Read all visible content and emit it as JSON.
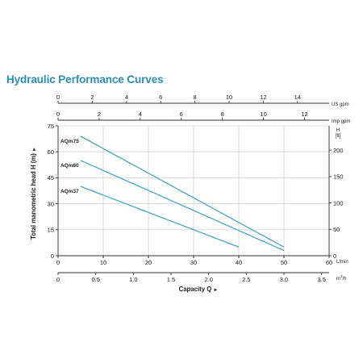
{
  "page": {
    "title": "Hydraulic Performance Curves"
  },
  "chart_data": {
    "type": "line",
    "title": "Hydraulic Performance Curves",
    "ylabel": "Total manometric head H (m)",
    "ylabel_arrow": "►",
    "xlabel": "Capacity Q",
    "xlabel_arrow": "►",
    "ylim": [
      0,
      75
    ],
    "xlim_lmin": [
      0,
      60
    ],
    "grid": true,
    "y_ticks": [
      "0",
      "15",
      "30",
      "45",
      "60",
      "75"
    ],
    "y_tick_values": [
      0,
      15,
      30,
      45,
      60,
      75
    ],
    "right_axis": {
      "unit_top": "H",
      "unit_bottom": "[ft]",
      "ticks": [
        "0",
        "50",
        "100",
        "150",
        "200"
      ],
      "tick_values": [
        0,
        50,
        100,
        150,
        200
      ],
      "ft_per_m": 3.28084
    },
    "x_axes": [
      {
        "id": "lmin",
        "unit": "L/min",
        "min": 0,
        "max": 60,
        "ticks": [
          "0",
          "10",
          "20",
          "30",
          "40",
          "50",
          "60"
        ],
        "tick_values": [
          0,
          10,
          20,
          30,
          40,
          50,
          60
        ]
      },
      {
        "id": "m3h",
        "unit_base": "m",
        "unit_sup": "3",
        "unit_tail": "/h",
        "min": 0,
        "max": 3.6,
        "ticks": [
          "0",
          "0.5",
          "1.0",
          "1.5",
          "2.0",
          "2.5",
          "3.0",
          "3.5"
        ],
        "tick_values": [
          0,
          0.5,
          1.0,
          1.5,
          2.0,
          2.5,
          3.0,
          3.5
        ]
      },
      {
        "id": "imp",
        "unit": "Imp gpm",
        "min": 0,
        "max": 13.198,
        "ticks": [
          "0",
          "2",
          "4",
          "6",
          "8",
          "10",
          "12"
        ],
        "tick_values": [
          0,
          2,
          4,
          6,
          8,
          10,
          12
        ]
      },
      {
        "id": "us",
        "unit": "US gpm",
        "min": 0,
        "max": 15.85,
        "ticks": [
          "0",
          "2",
          "4",
          "6",
          "8",
          "10",
          "12",
          "14"
        ],
        "tick_values": [
          0,
          2,
          4,
          6,
          8,
          10,
          12,
          14
        ]
      }
    ],
    "series": [
      {
        "name": "AQm75",
        "x": [
          5,
          50
        ],
        "y": [
          69,
          5
        ]
      },
      {
        "name": "AQm60",
        "x": [
          5,
          50
        ],
        "y": [
          55,
          3
        ]
      },
      {
        "name": "AQm37",
        "x": [
          5,
          40
        ],
        "y": [
          40,
          5
        ]
      }
    ],
    "colors": {
      "line": "#4aa6c4",
      "grid": "#d4d4d4",
      "axis": "#333333",
      "title": "#2a8fb5"
    }
  }
}
